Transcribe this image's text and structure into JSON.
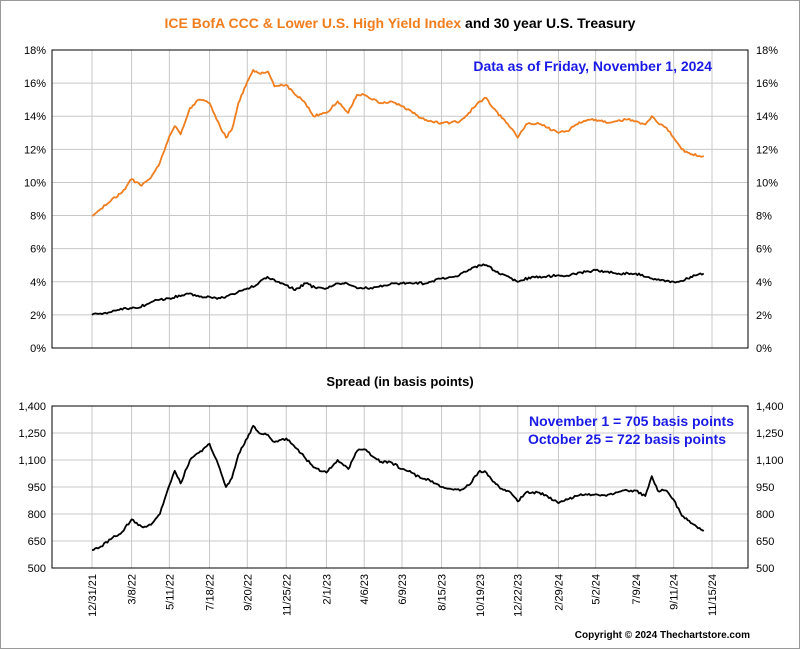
{
  "header": {
    "title_part1": "ICE BofA CCC & Lower U.S. High Yield Index",
    "title_part2": " and 30 year U.S. Treasury",
    "as_of": "Data as of Friday, November 1, 2024"
  },
  "colors": {
    "ccc": "#f07d1e",
    "treasury": "#000000",
    "spread": "#000000",
    "note": "#1a1ae6",
    "grid": "#c8c8c8"
  },
  "chart_data": [
    {
      "type": "line",
      "title": "ICE BofA CCC & Lower U.S. High Yield Index and 30 year U.S. Treasury",
      "y_ticks": [
        "0%",
        "2%",
        "4%",
        "6%",
        "8%",
        "10%",
        "12%",
        "14%",
        "16%",
        "18%"
      ],
      "ylim": [
        0,
        18
      ],
      "xlim": [
        "2021-12-31",
        "2024-11-15"
      ],
      "grid": true,
      "series": [
        {
          "name": "ICE BofA CCC & Lower U.S. High Yield Index",
          "color": "#f07d1e",
          "points": [
            [
              "2021-12-31",
              8.0
            ],
            [
              "2022-01-15",
              8.4
            ],
            [
              "2022-02-01",
              8.9
            ],
            [
              "2022-02-20",
              9.4
            ],
            [
              "2022-03-08",
              10.2
            ],
            [
              "2022-03-25",
              9.8
            ],
            [
              "2022-04-10",
              10.3
            ],
            [
              "2022-04-25",
              11.2
            ],
            [
              "2022-05-11",
              12.8
            ],
            [
              "2022-05-20",
              13.4
            ],
            [
              "2022-05-30",
              12.9
            ],
            [
              "2022-06-15",
              14.5
            ],
            [
              "2022-06-30",
              15.0
            ],
            [
              "2022-07-18",
              14.8
            ],
            [
              "2022-07-30",
              13.8
            ],
            [
              "2022-08-15",
              12.7
            ],
            [
              "2022-08-25",
              13.2
            ],
            [
              "2022-09-05",
              14.8
            ],
            [
              "2022-09-20",
              16.1
            ],
            [
              "2022-09-30",
              16.8
            ],
            [
              "2022-10-10",
              16.6
            ],
            [
              "2022-10-25",
              16.7
            ],
            [
              "2022-11-05",
              15.8
            ],
            [
              "2022-11-25",
              15.9
            ],
            [
              "2022-12-10",
              15.3
            ],
            [
              "2022-12-25",
              14.9
            ],
            [
              "2023-01-10",
              14.0
            ],
            [
              "2023-02-01",
              14.2
            ],
            [
              "2023-02-20",
              14.9
            ],
            [
              "2023-03-10",
              14.2
            ],
            [
              "2023-03-25",
              15.3
            ],
            [
              "2023-04-06",
              15.3
            ],
            [
              "2023-04-20",
              15.0
            ],
            [
              "2023-05-05",
              14.8
            ],
            [
              "2023-05-20",
              14.9
            ],
            [
              "2023-06-09",
              14.6
            ],
            [
              "2023-06-25",
              14.3
            ],
            [
              "2023-07-10",
              13.9
            ],
            [
              "2023-07-25",
              13.7
            ],
            [
              "2023-08-15",
              13.6
            ],
            [
              "2023-08-30",
              13.6
            ],
            [
              "2023-09-15",
              13.7
            ],
            [
              "2023-09-30",
              14.2
            ],
            [
              "2023-10-19",
              14.9
            ],
            [
              "2023-10-30",
              15.1
            ],
            [
              "2023-11-10",
              14.5
            ],
            [
              "2023-11-25",
              13.9
            ],
            [
              "2023-12-10",
              13.3
            ],
            [
              "2023-12-22",
              12.7
            ],
            [
              "2024-01-05",
              13.5
            ],
            [
              "2024-01-25",
              13.6
            ],
            [
              "2024-02-10",
              13.3
            ],
            [
              "2024-02-29",
              13.0
            ],
            [
              "2024-03-15",
              13.1
            ],
            [
              "2024-03-30",
              13.5
            ],
            [
              "2024-04-15",
              13.7
            ],
            [
              "2024-05-02",
              13.8
            ],
            [
              "2024-05-20",
              13.6
            ],
            [
              "2024-06-05",
              13.7
            ],
            [
              "2024-06-25",
              13.8
            ],
            [
              "2024-07-09",
              13.7
            ],
            [
              "2024-07-25",
              13.5
            ],
            [
              "2024-08-05",
              14.0
            ],
            [
              "2024-08-15",
              13.6
            ],
            [
              "2024-08-30",
              13.3
            ],
            [
              "2024-09-11",
              12.7
            ],
            [
              "2024-09-25",
              12.0
            ],
            [
              "2024-10-10",
              11.7
            ],
            [
              "2024-10-25",
              11.6
            ],
            [
              "2024-11-01",
              11.6
            ]
          ]
        },
        {
          "name": "30 year U.S. Treasury",
          "color": "#000000",
          "points": [
            [
              "2021-12-31",
              2.0
            ],
            [
              "2022-01-20",
              2.1
            ],
            [
              "2022-02-15",
              2.3
            ],
            [
              "2022-03-08",
              2.4
            ],
            [
              "2022-04-01",
              2.6
            ],
            [
              "2022-04-20",
              2.9
            ],
            [
              "2022-05-11",
              3.0
            ],
            [
              "2022-06-15",
              3.3
            ],
            [
              "2022-07-01",
              3.1
            ],
            [
              "2022-07-18",
              3.1
            ],
            [
              "2022-08-05",
              3.0
            ],
            [
              "2022-09-01",
              3.3
            ],
            [
              "2022-09-20",
              3.6
            ],
            [
              "2022-10-05",
              3.8
            ],
            [
              "2022-10-24",
              4.3
            ],
            [
              "2022-11-10",
              4.0
            ],
            [
              "2022-11-25",
              3.8
            ],
            [
              "2022-12-10",
              3.5
            ],
            [
              "2022-12-28",
              3.9
            ],
            [
              "2023-01-15",
              3.6
            ],
            [
              "2023-02-01",
              3.6
            ],
            [
              "2023-02-20",
              3.9
            ],
            [
              "2023-03-08",
              3.9
            ],
            [
              "2023-03-25",
              3.6
            ],
            [
              "2023-04-06",
              3.6
            ],
            [
              "2023-05-01",
              3.7
            ],
            [
              "2023-05-25",
              3.9
            ],
            [
              "2023-06-09",
              3.9
            ],
            [
              "2023-06-30",
              3.9
            ],
            [
              "2023-07-20",
              3.9
            ],
            [
              "2023-08-15",
              4.2
            ],
            [
              "2023-09-05",
              4.3
            ],
            [
              "2023-09-25",
              4.6
            ],
            [
              "2023-10-19",
              5.0
            ],
            [
              "2023-10-30",
              5.0
            ],
            [
              "2023-11-15",
              4.6
            ],
            [
              "2023-12-01",
              4.4
            ],
            [
              "2023-12-22",
              4.0
            ],
            [
              "2024-01-15",
              4.3
            ],
            [
              "2024-02-05",
              4.3
            ],
            [
              "2024-02-29",
              4.4
            ],
            [
              "2024-03-20",
              4.4
            ],
            [
              "2024-04-15",
              4.6
            ],
            [
              "2024-05-02",
              4.7
            ],
            [
              "2024-05-20",
              4.6
            ],
            [
              "2024-06-10",
              4.5
            ],
            [
              "2024-07-01",
              4.5
            ],
            [
              "2024-07-09",
              4.5
            ],
            [
              "2024-08-05",
              4.2
            ],
            [
              "2024-08-25",
              4.1
            ],
            [
              "2024-09-11",
              4.0
            ],
            [
              "2024-09-20",
              4.0
            ],
            [
              "2024-10-05",
              4.2
            ],
            [
              "2024-10-20",
              4.4
            ],
            [
              "2024-11-01",
              4.5
            ]
          ]
        }
      ]
    },
    {
      "type": "line",
      "title": "Spread (in basis points)",
      "y_ticks": [
        "500",
        "650",
        "800",
        "950",
        "1,100",
        "1,250",
        "1,400"
      ],
      "ylim": [
        500,
        1400
      ],
      "xlim": [
        "2021-12-31",
        "2024-11-15"
      ],
      "grid": true,
      "x_ticks": [
        "12/31/21",
        "3/8/22",
        "5/11/22",
        "7/18/22",
        "9/20/22",
        "11/25/22",
        "2/1/23",
        "4/6/23",
        "6/9/23",
        "8/15/23",
        "10/19/23",
        "12/22/23",
        "2/29/24",
        "5/2/24",
        "7/9/24",
        "9/11/24",
        "11/15/24"
      ],
      "annotations": [
        "November 1 = 705 basis points",
        "October 25 = 722 basis points"
      ],
      "series": [
        {
          "name": "Spread",
          "color": "#000000",
          "points": [
            [
              "2021-12-31",
              600
            ],
            [
              "2022-01-15",
              620
            ],
            [
              "2022-02-01",
              660
            ],
            [
              "2022-02-20",
              700
            ],
            [
              "2022-03-08",
              770
            ],
            [
              "2022-03-25",
              730
            ],
            [
              "2022-04-10",
              740
            ],
            [
              "2022-04-25",
              800
            ],
            [
              "2022-05-11",
              960
            ],
            [
              "2022-05-20",
              1040
            ],
            [
              "2022-05-30",
              970
            ],
            [
              "2022-06-15",
              1100
            ],
            [
              "2022-06-30",
              1140
            ],
            [
              "2022-07-18",
              1190
            ],
            [
              "2022-07-30",
              1100
            ],
            [
              "2022-08-15",
              950
            ],
            [
              "2022-08-25",
              1000
            ],
            [
              "2022-09-05",
              1130
            ],
            [
              "2022-09-20",
              1220
            ],
            [
              "2022-09-30",
              1290
            ],
            [
              "2022-10-10",
              1250
            ],
            [
              "2022-10-25",
              1240
            ],
            [
              "2022-11-05",
              1200
            ],
            [
              "2022-11-25",
              1220
            ],
            [
              "2022-12-10",
              1170
            ],
            [
              "2022-12-25",
              1120
            ],
            [
              "2023-01-10",
              1060
            ],
            [
              "2023-02-01",
              1030
            ],
            [
              "2023-02-20",
              1100
            ],
            [
              "2023-03-10",
              1050
            ],
            [
              "2023-03-25",
              1150
            ],
            [
              "2023-04-06",
              1160
            ],
            [
              "2023-04-20",
              1120
            ],
            [
              "2023-05-05",
              1090
            ],
            [
              "2023-05-20",
              1090
            ],
            [
              "2023-06-09",
              1050
            ],
            [
              "2023-06-25",
              1030
            ],
            [
              "2023-07-10",
              1000
            ],
            [
              "2023-07-25",
              990
            ],
            [
              "2023-08-15",
              950
            ],
            [
              "2023-08-30",
              940
            ],
            [
              "2023-09-15",
              930
            ],
            [
              "2023-09-30",
              960
            ],
            [
              "2023-10-19",
              1040
            ],
            [
              "2023-10-30",
              1030
            ],
            [
              "2023-11-10",
              980
            ],
            [
              "2023-11-25",
              940
            ],
            [
              "2023-12-10",
              920
            ],
            [
              "2023-12-22",
              870
            ],
            [
              "2024-01-05",
              920
            ],
            [
              "2024-01-25",
              920
            ],
            [
              "2024-02-10",
              900
            ],
            [
              "2024-02-29",
              860
            ],
            [
              "2024-03-15",
              880
            ],
            [
              "2024-03-30",
              900
            ],
            [
              "2024-04-15",
              910
            ],
            [
              "2024-05-02",
              910
            ],
            [
              "2024-05-20",
              900
            ],
            [
              "2024-06-05",
              920
            ],
            [
              "2024-06-25",
              930
            ],
            [
              "2024-07-09",
              930
            ],
            [
              "2024-07-25",
              900
            ],
            [
              "2024-08-05",
              1010
            ],
            [
              "2024-08-15",
              930
            ],
            [
              "2024-08-30",
              930
            ],
            [
              "2024-09-11",
              880
            ],
            [
              "2024-09-25",
              790
            ],
            [
              "2024-10-10",
              750
            ],
            [
              "2024-10-25",
              722
            ],
            [
              "2024-11-01",
              705
            ]
          ]
        }
      ]
    }
  ],
  "footer": {
    "copyright": "Copyright © 2024 Thechartstore.com"
  }
}
